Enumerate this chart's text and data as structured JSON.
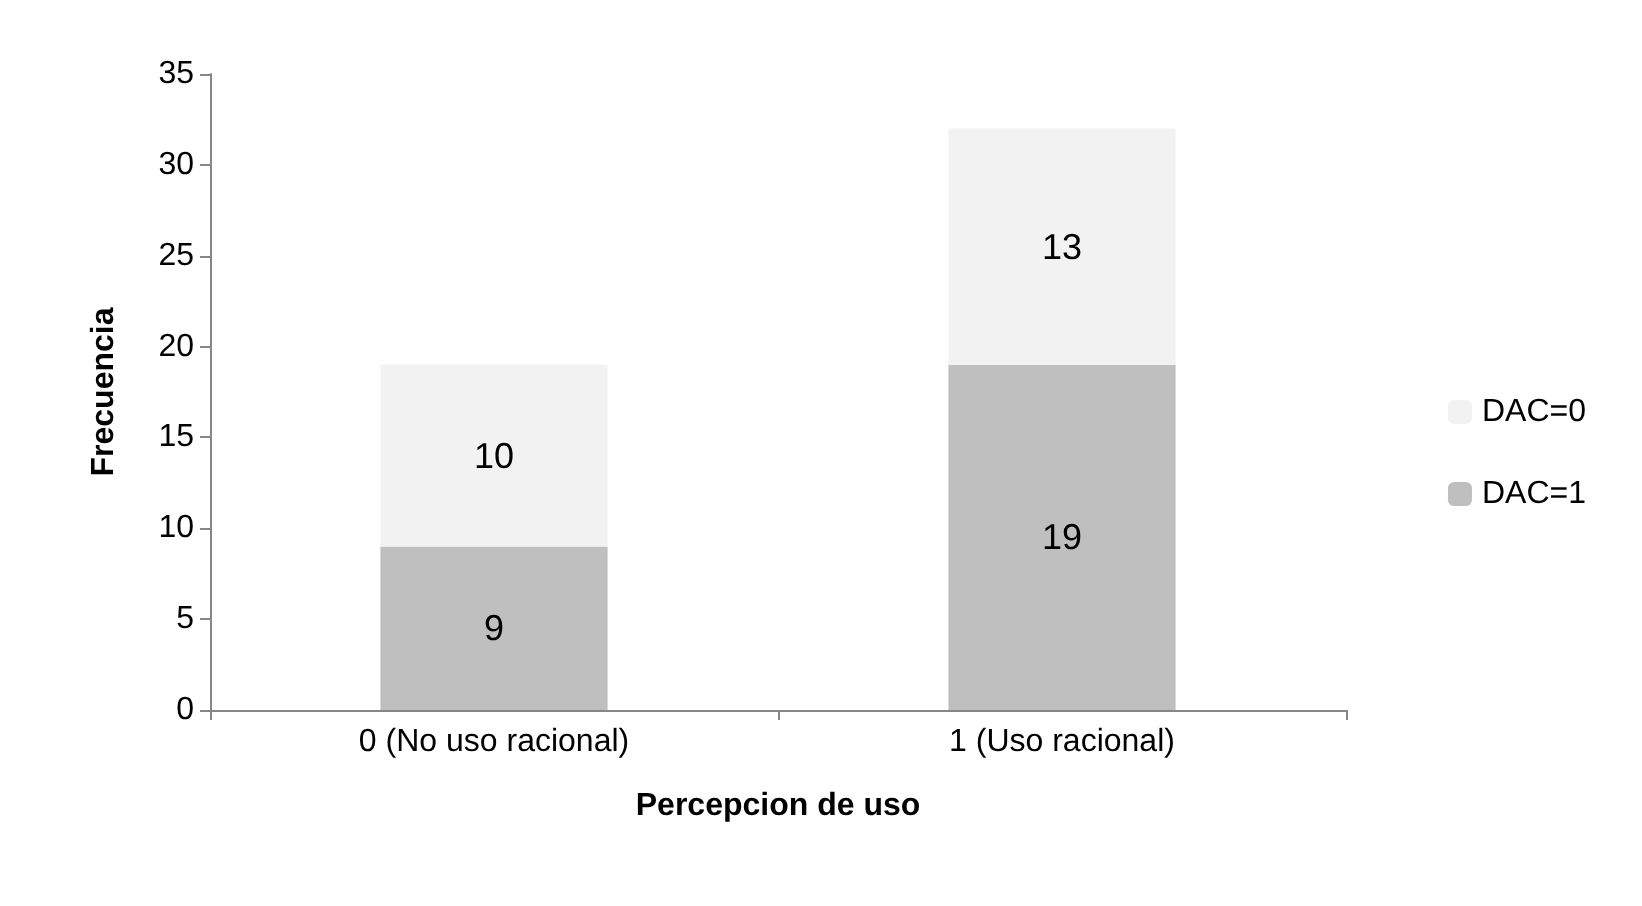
{
  "chart_data": {
    "type": "bar",
    "stacked": true,
    "xlabel": "Percepcion de uso",
    "ylabel": "Frecuencia",
    "categories": [
      "0 (No uso racional)",
      "1 (Uso racional)"
    ],
    "series": [
      {
        "name": "DAC=1",
        "color": "#bfbfbf",
        "values": [
          9,
          19
        ]
      },
      {
        "name": "DAC=0",
        "color": "#f2f2f2",
        "values": [
          10,
          13
        ]
      }
    ],
    "ylim": [
      0,
      35
    ],
    "yticks": [
      0,
      5,
      10,
      15,
      20,
      25,
      30,
      35
    ],
    "grid": false,
    "legend": "right",
    "data_labels": true
  }
}
